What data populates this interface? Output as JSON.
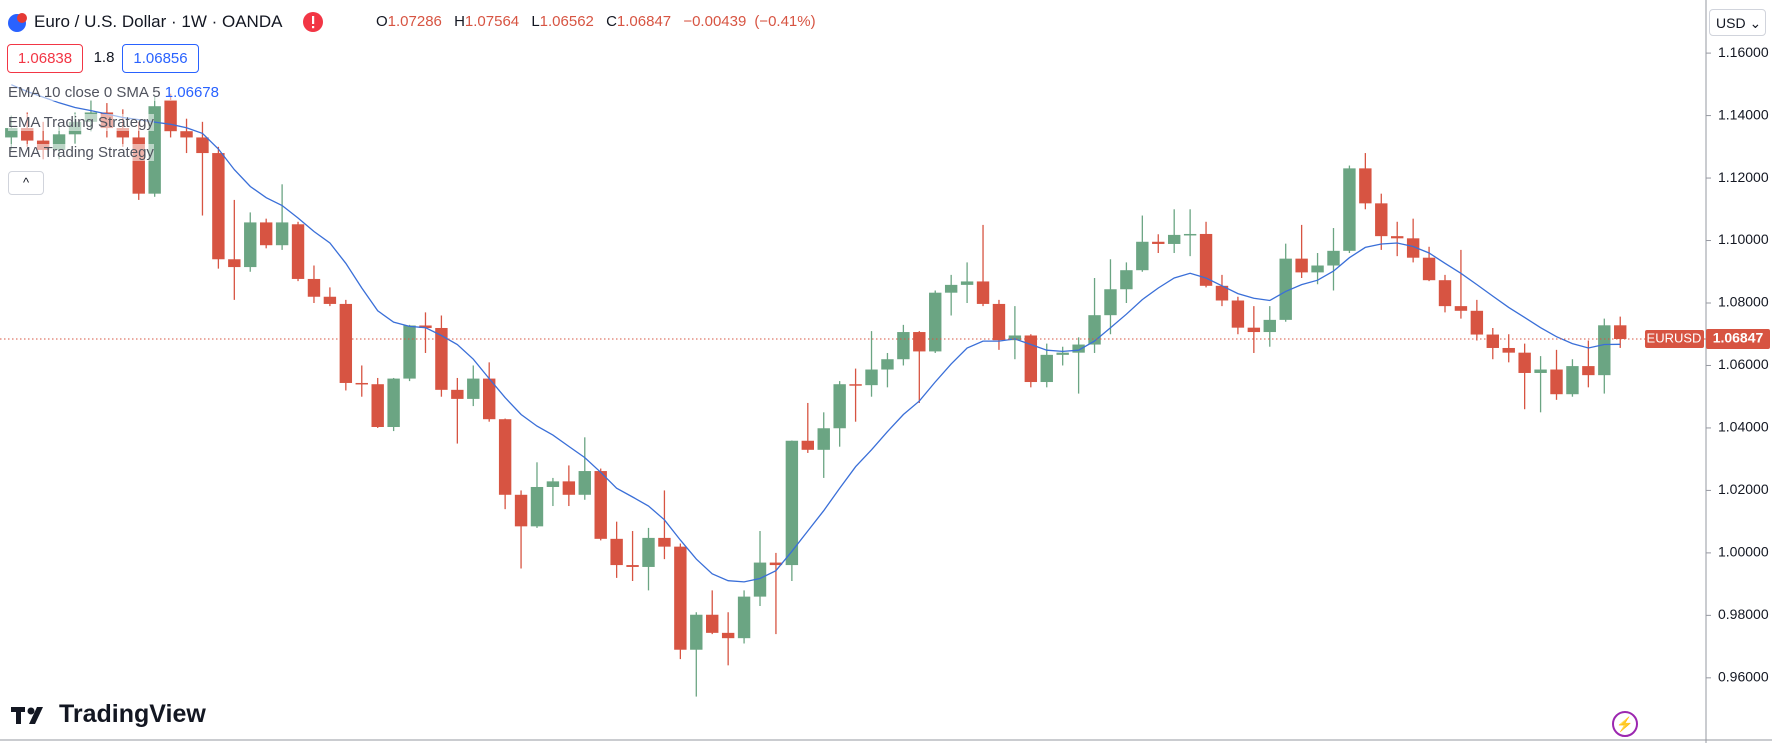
{
  "chart_data": {
    "type": "candlestick",
    "title": "Euro / U.S. Dollar · 1W · OANDA",
    "ohlc_labels": [
      "O",
      "H",
      "L",
      "C"
    ],
    "change": "−0.00439",
    "change_pct": "(−0.41%)",
    "bid": 1.06838,
    "spread": 1.8,
    "ask": 1.06856,
    "indicator_label": "EMA 10 close 0 SMA 5",
    "strategies": [
      "EMA Trading Strategy",
      "EMA Trading Strategy"
    ],
    "currency": "USD",
    "symbol": "EURUSD",
    "brand": "TradingView",
    "up_color": "#6ba583",
    "down_color": "#d75442",
    "ema_color": "#3a6fd8",
    "ylim": [
      0.9401,
      1.177
    ],
    "yticks": [
      {
        "value": 0.96,
        "label": "0.96000"
      },
      {
        "value": 0.98,
        "label": "0.98000"
      },
      {
        "value": 1.0,
        "label": "1.00000"
      },
      {
        "value": 1.02,
        "label": "1.02000"
      },
      {
        "value": 1.04,
        "label": "1.04000"
      },
      {
        "value": 1.06,
        "label": "1.06000"
      },
      {
        "value": 1.08,
        "label": "1.08000"
      },
      {
        "value": 1.1,
        "label": "1.10000"
      },
      {
        "value": 1.12,
        "label": "1.12000"
      },
      {
        "value": 1.14,
        "label": "1.14000"
      },
      {
        "value": 1.16,
        "label": "1.16000"
      }
    ],
    "open": [
      1.133,
      1.136,
      1.132,
      1.129,
      1.134,
      1.138,
      1.141,
      1.136,
      1.133,
      1.115,
      1.145,
      1.135,
      1.133,
      1.128,
      1.094,
      1.0915,
      1.1058,
      1.0985,
      1.1052,
      1.0877,
      1.082,
      1.0797,
      1.0544,
      1.054,
      1.0403,
      1.0558,
      1.0728,
      1.072,
      1.0522,
      1.0493,
      1.0558,
      1.0428,
      1.0186,
      1.0085,
      1.0211,
      1.0229,
      1.0186,
      1.0262,
      1.0045,
      0.9961,
      0.9955,
      1.0048,
      1.002,
      0.969,
      0.9802,
      0.9744,
      0.9727,
      0.986,
      0.9969,
      0.9961,
      1.0359,
      1.033,
      1.0399,
      1.054,
      1.0537,
      1.0587,
      1.062,
      1.0707,
      1.0645,
      1.0833,
      1.0858,
      1.0869,
      1.0797,
      1.0681,
      1.0696,
      1.0547,
      1.0634,
      1.0641,
      1.0667,
      1.0761,
      1.0844,
      1.0905,
      1.0996,
      1.0989,
      1.1018,
      1.1021,
      1.0855,
      1.0808,
      1.0721,
      1.0707,
      1.0746,
      1.0942,
      1.0898,
      1.092,
      1.0967,
      1.1231,
      1.1119,
      1.1014,
      1.1007,
      1.0945,
      1.0873,
      1.079,
      1.0775,
      1.0699,
      1.0656,
      1.0641,
      1.0576,
      1.0587,
      1.0508,
      1.0598,
      1.0569,
      1.07286
    ],
    "high": [
      1.14,
      1.141,
      1.138,
      1.137,
      1.141,
      1.145,
      1.144,
      1.142,
      1.138,
      1.146,
      1.147,
      1.139,
      1.138,
      1.13,
      1.113,
      1.109,
      1.107,
      1.118,
      1.106,
      1.092,
      1.085,
      1.081,
      1.06,
      1.056,
      1.056,
      1.073,
      1.077,
      1.076,
      1.056,
      1.06,
      1.061,
      1.043,
      1.02,
      1.029,
      1.024,
      1.028,
      1.037,
      1.027,
      1.01,
      1.007,
      1.008,
      1.02,
      1.003,
      0.981,
      0.988,
      0.981,
      0.988,
      1.007,
      1.0,
      1.036,
      1.048,
      1.045,
      1.055,
      1.059,
      1.071,
      1.064,
      1.073,
      1.071,
      1.084,
      1.089,
      1.093,
      1.105,
      1.081,
      1.079,
      1.07,
      1.067,
      1.066,
      1.069,
      1.088,
      1.094,
      1.093,
      1.108,
      1.102,
      1.11,
      1.11,
      1.106,
      1.089,
      1.082,
      1.079,
      1.079,
      1.099,
      1.105,
      1.096,
      1.104,
      1.124,
      1.128,
      1.115,
      1.106,
      1.107,
      1.098,
      1.089,
      1.097,
      1.081,
      1.072,
      1.07,
      1.067,
      1.063,
      1.065,
      1.062,
      1.068,
      1.075,
      1.07564
    ],
    "low": [
      1.129,
      1.13,
      1.126,
      1.126,
      1.131,
      1.135,
      1.133,
      1.13,
      1.113,
      1.114,
      1.133,
      1.128,
      1.108,
      1.091,
      1.081,
      1.09,
      1.0975,
      1.097,
      1.087,
      1.08,
      1.079,
      1.052,
      1.05,
      1.04,
      1.039,
      1.055,
      1.064,
      1.05,
      1.035,
      1.047,
      1.042,
      1.014,
      0.995,
      1.008,
      1.015,
      1.015,
      1.017,
      1.004,
      0.992,
      0.991,
      0.988,
      0.998,
      0.966,
      0.954,
      0.974,
      0.964,
      0.971,
      0.983,
      0.974,
      0.991,
      1.032,
      1.024,
      1.034,
      1.042,
      1.05,
      1.053,
      1.06,
      1.048,
      1.064,
      1.076,
      1.08,
      1.079,
      1.065,
      1.062,
      1.053,
      1.053,
      1.06,
      1.051,
      1.064,
      1.07,
      1.08,
      1.09,
      1.096,
      1.096,
      1.095,
      1.085,
      1.079,
      1.07,
      1.064,
      1.066,
      1.074,
      1.088,
      1.086,
      1.084,
      1.096,
      1.11,
      1.097,
      1.095,
      1.093,
      1.087,
      1.077,
      1.075,
      1.068,
      1.062,
      1.061,
      1.046,
      1.045,
      1.049,
      1.05,
      1.053,
      1.051,
      1.06562
    ],
    "close": [
      1.136,
      1.132,
      1.129,
      1.134,
      1.138,
      1.141,
      1.136,
      1.133,
      1.115,
      1.143,
      1.135,
      1.133,
      1.128,
      1.094,
      1.0915,
      1.1058,
      1.0985,
      1.1058,
      1.0877,
      1.082,
      1.0797,
      1.0544,
      1.054,
      1.0403,
      1.0558,
      1.0728,
      1.072,
      1.0522,
      1.0493,
      1.0558,
      1.0428,
      1.0186,
      1.0085,
      1.0211,
      1.0229,
      1.0186,
      1.0262,
      1.0045,
      0.9961,
      0.9955,
      1.0048,
      1.002,
      0.969,
      0.9802,
      0.9744,
      0.9727,
      0.986,
      0.9969,
      0.9961,
      1.0359,
      1.033,
      1.0399,
      1.054,
      1.0537,
      1.0587,
      1.062,
      1.0707,
      1.0645,
      1.0833,
      1.0858,
      1.0869,
      1.0797,
      1.0681,
      1.0696,
      1.0547,
      1.0634,
      1.0641,
      1.0667,
      1.0761,
      1.0844,
      1.0905,
      1.0996,
      1.0989,
      1.1018,
      1.1021,
      1.0855,
      1.0808,
      1.0721,
      1.0707,
      1.0746,
      1.0942,
      1.0898,
      1.092,
      1.0967,
      1.1231,
      1.1119,
      1.1014,
      1.1007,
      1.0945,
      1.0873,
      1.079,
      1.0775,
      1.0699,
      1.0656,
      1.0641,
      1.0576,
      1.0587,
      1.0508,
      1.0598,
      1.0569,
      1.07286,
      1.06847
    ],
    "ema": [
      1.1499,
      1.1477,
      1.1459,
      1.1441,
      1.1426,
      1.1416,
      1.1405,
      1.1394,
      1.1387,
      1.1379,
      1.1372,
      1.1361,
      1.1343,
      1.1293,
      1.1227,
      1.1173,
      1.1137,
      1.1112,
      1.1072,
      1.1029,
      1.0992,
      1.0927,
      1.0848,
      1.0775,
      1.0739,
      1.0725,
      1.0721,
      1.0696,
      1.0667,
      1.062,
      1.0558,
      1.0497,
      1.0443,
      1.0406,
      1.0377,
      1.0341,
      1.0305,
      1.0258,
      1.0207,
      1.0179,
      1.015,
      1.0106,
      1.0041,
      0.998,
      0.9933,
      0.9911,
      0.9907,
      0.9918,
      0.9943,
      1.0005,
      1.007,
      1.0135,
      1.0207,
      1.0276,
      1.033,
      1.0388,
      1.0443,
      1.0486,
      1.0547,
      1.0605,
      1.0656,
      1.0678,
      1.0678,
      1.0685,
      1.0667,
      1.0649,
      1.0645,
      1.0649,
      1.0678,
      1.0721,
      1.0764,
      1.0811,
      1.0848,
      1.088,
      1.0895,
      1.088,
      1.0855,
      1.083,
      1.0815,
      1.0808,
      1.0837,
      1.0859,
      1.0873,
      1.0902,
      1.0945,
      1.0978,
      1.0989,
      1.0992,
      1.0981,
      1.096,
      1.0927,
      1.0895,
      1.0859,
      1.0822,
      1.0786,
      1.0754,
      1.0721,
      1.0692,
      1.067,
      1.0656,
      1.0667,
      1.06678
    ]
  }
}
